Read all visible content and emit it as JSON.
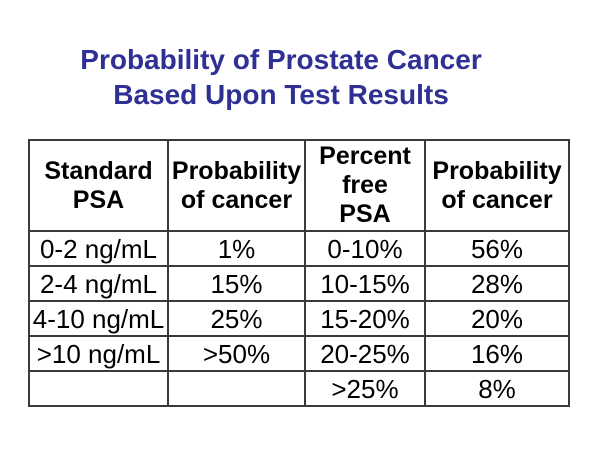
{
  "slide": {
    "background_color": "#ffffff",
    "title": {
      "line1": "Probability of Prostate Cancer",
      "line2": "Based Upon Test Results",
      "color": "#2f3094"
    }
  },
  "table": {
    "border_color": "#3a3a3a",
    "text_color": "#000000",
    "headers": [
      {
        "label": "Standard PSA",
        "lines": [
          "Standard",
          "PSA"
        ]
      },
      {
        "label": "Probability of cancer",
        "lines": [
          "Probability",
          "of cancer"
        ]
      },
      {
        "label": "Percent free PSA",
        "lines": [
          "Percent",
          "free",
          "PSA"
        ]
      },
      {
        "label": "Probability of cancer",
        "lines": [
          "Probability",
          "of cancer"
        ]
      }
    ],
    "rows": [
      [
        "0-2 ng/mL",
        "1%",
        "0-10%",
        "56%"
      ],
      [
        "2-4 ng/mL",
        "15%",
        "10-15%",
        "28%"
      ],
      [
        "4-10 ng/mL",
        "25%",
        "15-20%",
        "20%"
      ],
      [
        ">10 ng/mL",
        ">50%",
        "20-25%",
        "16%"
      ],
      [
        "",
        "",
        ">25%",
        "8%"
      ]
    ]
  }
}
